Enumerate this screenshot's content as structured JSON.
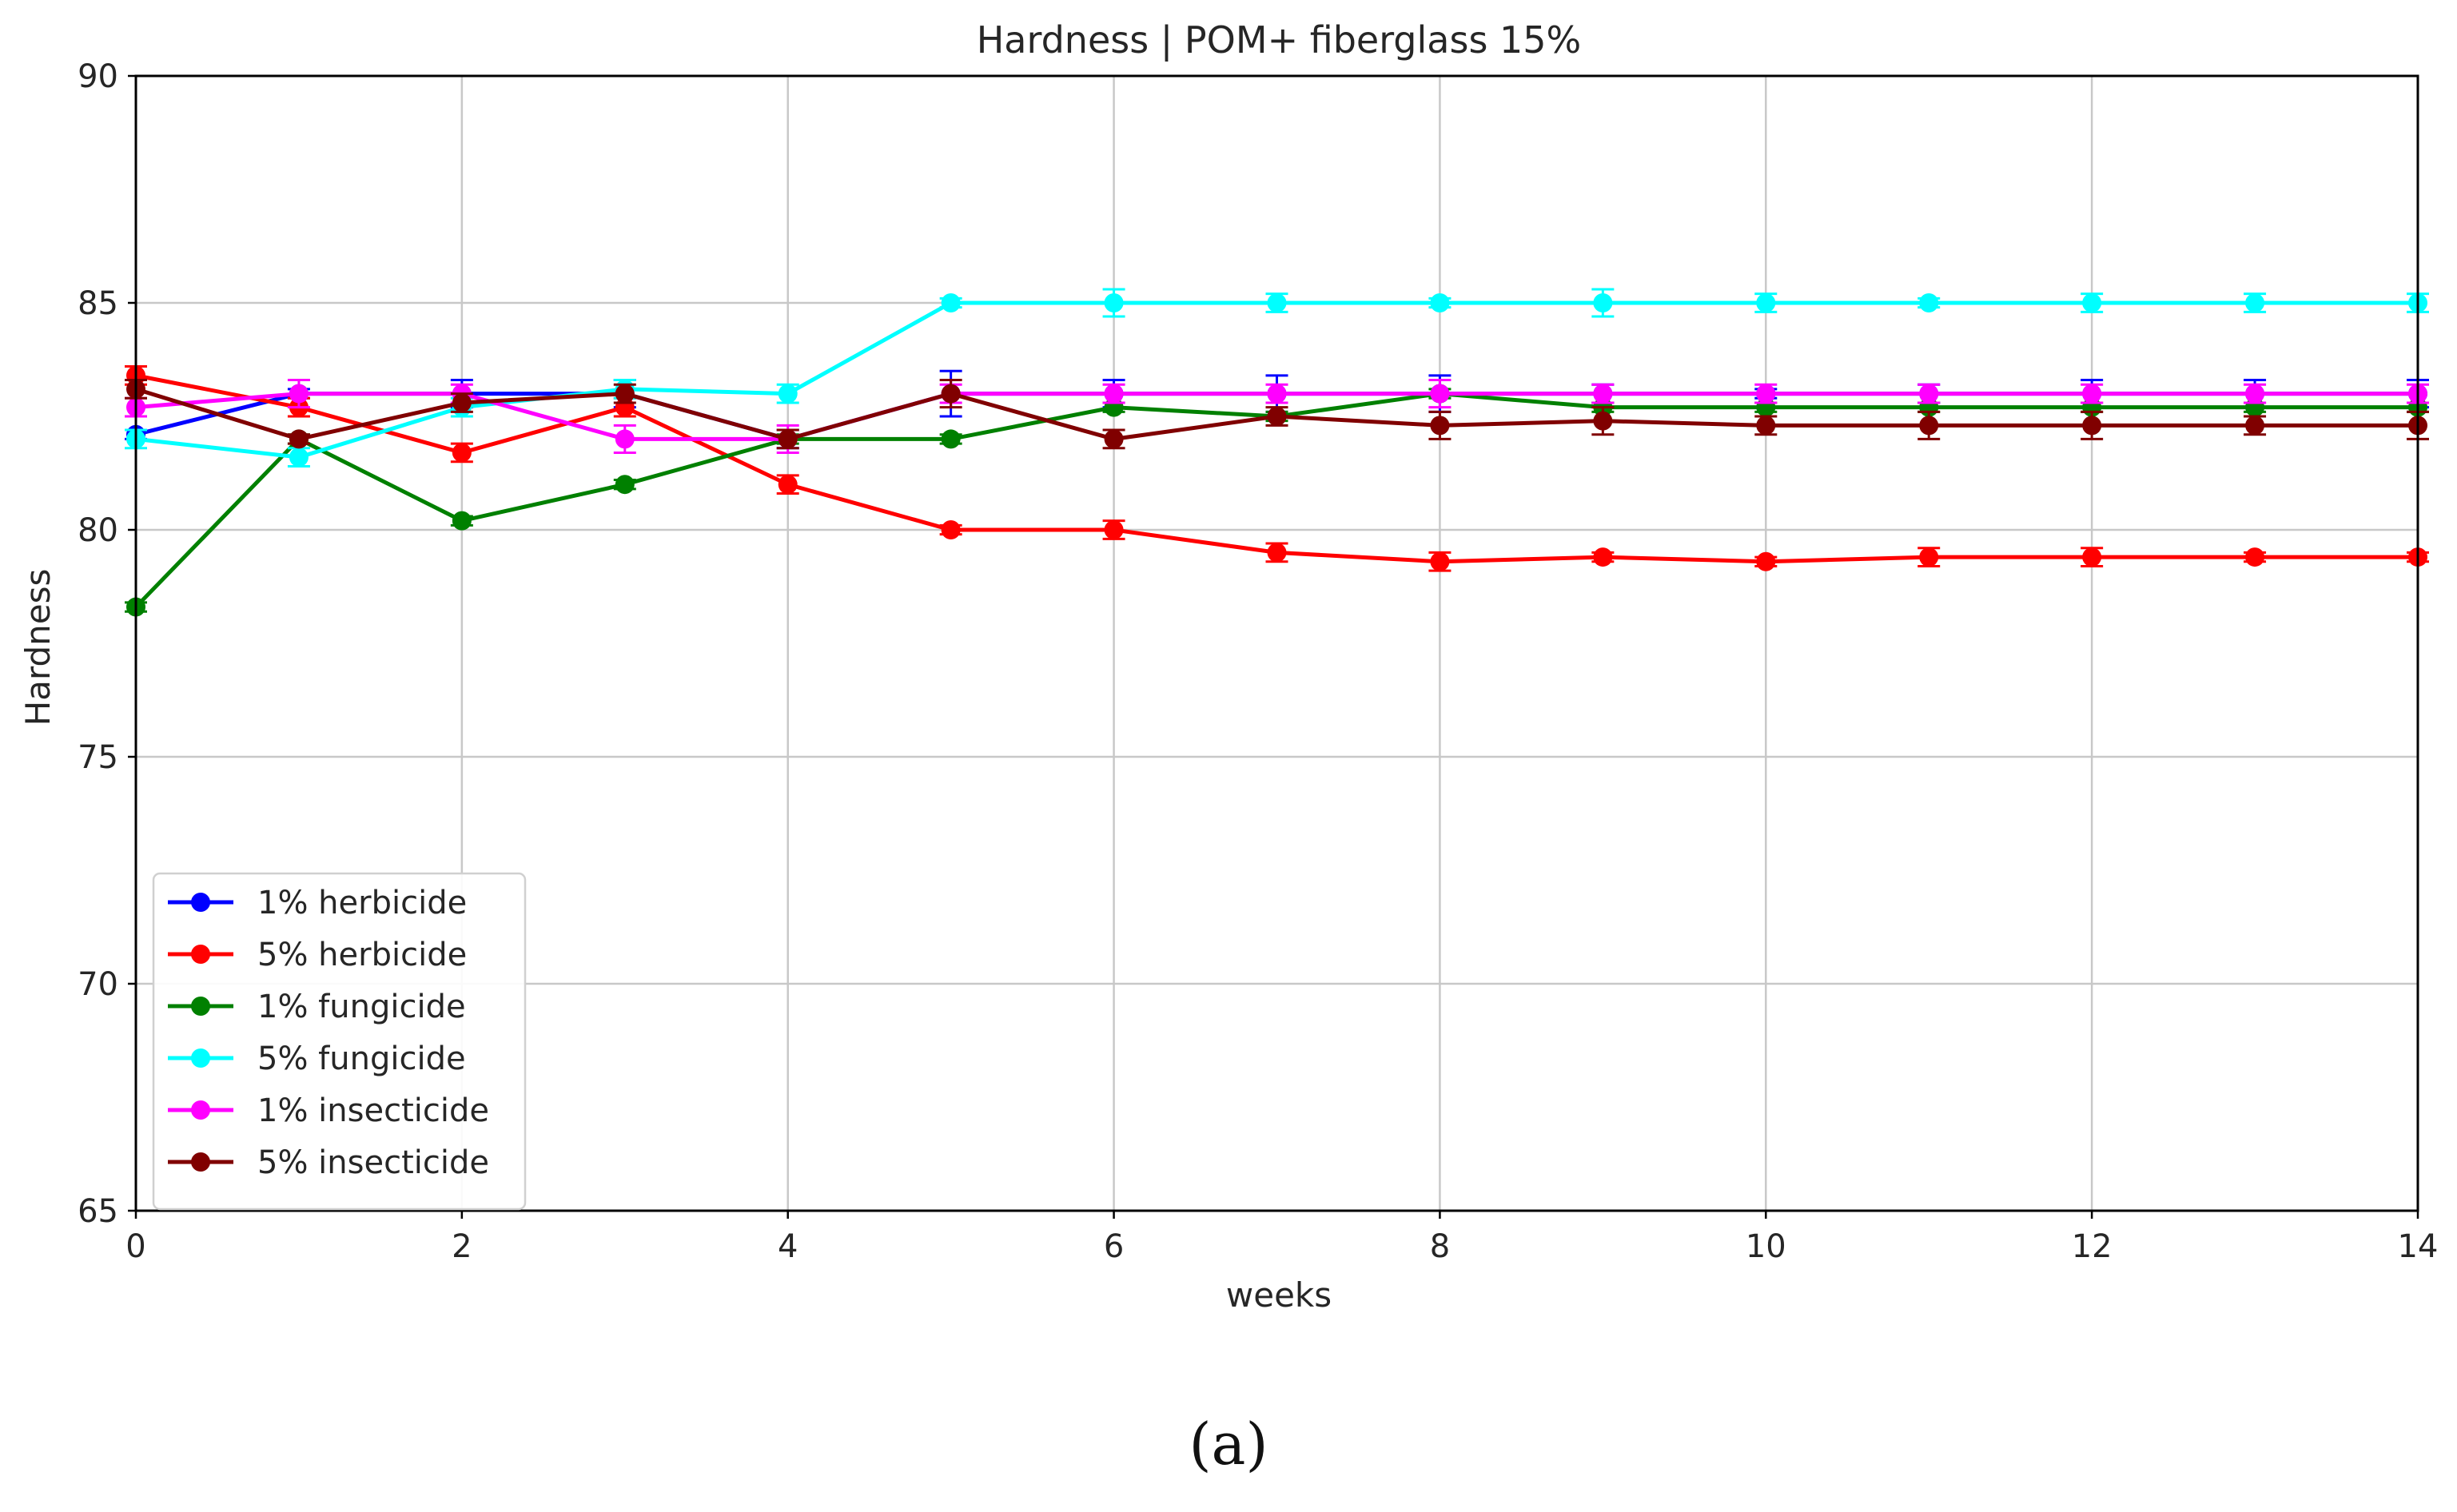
{
  "chart_data": {
    "type": "line",
    "title": "Hardness | POM+ fiberglass 15%",
    "xlabel": "weeks",
    "ylabel": "Hardness",
    "xlim": [
      0,
      14
    ],
    "ylim": [
      65,
      90
    ],
    "xticks": [
      0,
      2,
      4,
      6,
      8,
      10,
      12,
      14
    ],
    "yticks": [
      65,
      70,
      75,
      80,
      85,
      90
    ],
    "grid": true,
    "legend_position": "lower-left",
    "x": [
      0,
      1,
      2,
      3,
      4,
      5,
      6,
      7,
      8,
      9,
      10,
      11,
      12,
      13,
      14
    ],
    "series": [
      {
        "name": "1% herbicide",
        "color": "#0000ff",
        "values": [
          82.1,
          83.0,
          83.0,
          83.0,
          82.0,
          83.0,
          83.0,
          83.0,
          83.0,
          83.0,
          83.0,
          83.0,
          83.0,
          83.0,
          83.0
        ],
        "errors": [
          0.1,
          0.1,
          0.3,
          0.3,
          0.2,
          0.5,
          0.3,
          0.4,
          0.4,
          0.2,
          0.1,
          0.2,
          0.3,
          0.3,
          0.3
        ]
      },
      {
        "name": "5% herbicide",
        "color": "#ff0000",
        "values": [
          83.4,
          82.7,
          81.7,
          82.7,
          81.0,
          80.0,
          80.0,
          79.5,
          79.3,
          79.4,
          79.3,
          79.4,
          79.4,
          79.4,
          79.4
        ],
        "errors": [
          0.2,
          0.2,
          0.2,
          0.2,
          0.2,
          0.1,
          0.2,
          0.2,
          0.2,
          0.1,
          0.1,
          0.2,
          0.2,
          0.1,
          0.1
        ]
      },
      {
        "name": "1% fungicide",
        "color": "#008000",
        "values": [
          78.3,
          82.0,
          80.2,
          81.0,
          82.0,
          82.0,
          82.7,
          82.5,
          83.0,
          82.7,
          82.7,
          82.7,
          82.7,
          82.7,
          82.7
        ],
        "errors": [
          0.1,
          0.1,
          0.1,
          0.1,
          0.1,
          0.1,
          0.1,
          0.1,
          0.1,
          0.1,
          0.1,
          0.1,
          0.1,
          0.1,
          0.1
        ]
      },
      {
        "name": "5% fungicide",
        "color": "#00ffff",
        "values": [
          82.0,
          81.6,
          82.7,
          83.1,
          83.0,
          85.0,
          85.0,
          85.0,
          85.0,
          85.0,
          85.0,
          85.0,
          85.0,
          85.0,
          85.0
        ],
        "errors": [
          0.2,
          0.2,
          0.2,
          0.2,
          0.2,
          0.1,
          0.3,
          0.2,
          0.1,
          0.3,
          0.2,
          0.1,
          0.2,
          0.2,
          0.2
        ]
      },
      {
        "name": "1% insecticide",
        "color": "#ff00ff",
        "values": [
          82.7,
          83.0,
          83.0,
          82.0,
          82.0,
          83.0,
          83.0,
          83.0,
          83.0,
          83.0,
          83.0,
          83.0,
          83.0,
          83.0,
          83.0
        ],
        "errors": [
          0.2,
          0.3,
          0.2,
          0.3,
          0.3,
          0.2,
          0.2,
          0.2,
          0.3,
          0.2,
          0.2,
          0.2,
          0.2,
          0.2,
          0.2
        ]
      },
      {
        "name": "5% insecticide",
        "color": "#800000",
        "values": [
          83.1,
          82.0,
          82.8,
          83.0,
          82.0,
          83.0,
          82.0,
          82.5,
          82.3,
          82.4,
          82.3,
          82.3,
          82.3,
          82.3,
          82.3
        ],
        "errors": [
          0.2,
          0.1,
          0.2,
          0.2,
          0.2,
          0.3,
          0.2,
          0.2,
          0.3,
          0.3,
          0.2,
          0.3,
          0.3,
          0.2,
          0.3
        ]
      }
    ]
  },
  "caption": "(a)"
}
